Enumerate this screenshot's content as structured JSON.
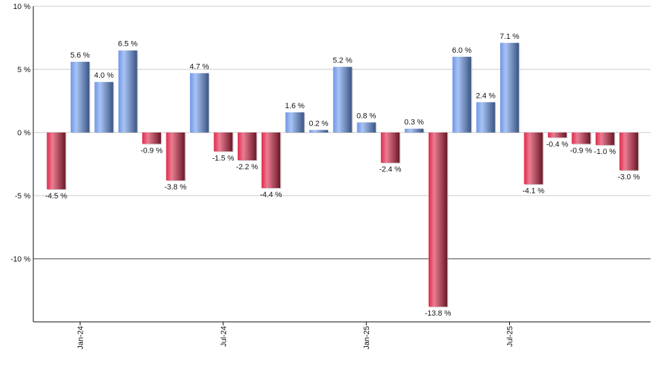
{
  "chart_data": {
    "type": "bar",
    "title": "",
    "xlabel": "",
    "ylabel": "",
    "ylim": [
      -15,
      10
    ],
    "yticks": [
      10,
      5,
      0,
      -5,
      -10
    ],
    "ytick_labels": [
      "10 %",
      "5 %",
      "0 %",
      "-5 %",
      "-10 %"
    ],
    "grid": true,
    "xtick_labels": [
      {
        "label": "Jan-24",
        "index": 1
      },
      {
        "label": "Jul-24",
        "index": 7
      },
      {
        "label": "Jan-25",
        "index": 13
      },
      {
        "label": "Jul-25",
        "index": 19
      }
    ],
    "values": [
      -4.5,
      5.6,
      4.0,
      6.5,
      -0.9,
      -3.8,
      4.7,
      -1.5,
      -2.2,
      -4.4,
      1.6,
      0.2,
      5.2,
      0.8,
      -2.4,
      0.3,
      -13.8,
      6.0,
      2.4,
      7.1,
      -4.1,
      -0.4,
      -0.9,
      -1.0,
      -3.0
    ],
    "data_labels": [
      "-4.5 %",
      "5.6 %",
      "4.0 %",
      "6.5 %",
      "-0.9 %",
      "-3.8 %",
      "4.7 %",
      "-1.5 %",
      "-2.2 %",
      "-4.4 %",
      "1.6 %",
      "0.2 %",
      "5.2 %",
      "0.8 %",
      "-2.4 %",
      "0.3 %",
      "-13.8 %",
      "6.0 %",
      "2.4 %",
      "7.1 %",
      "-4.1 %",
      "-0.4 %",
      "-0.9 %",
      "-1.0 %",
      "-3.0 %"
    ],
    "colors": {
      "positive": "#6f97e6",
      "negative": "#e0304f"
    }
  }
}
